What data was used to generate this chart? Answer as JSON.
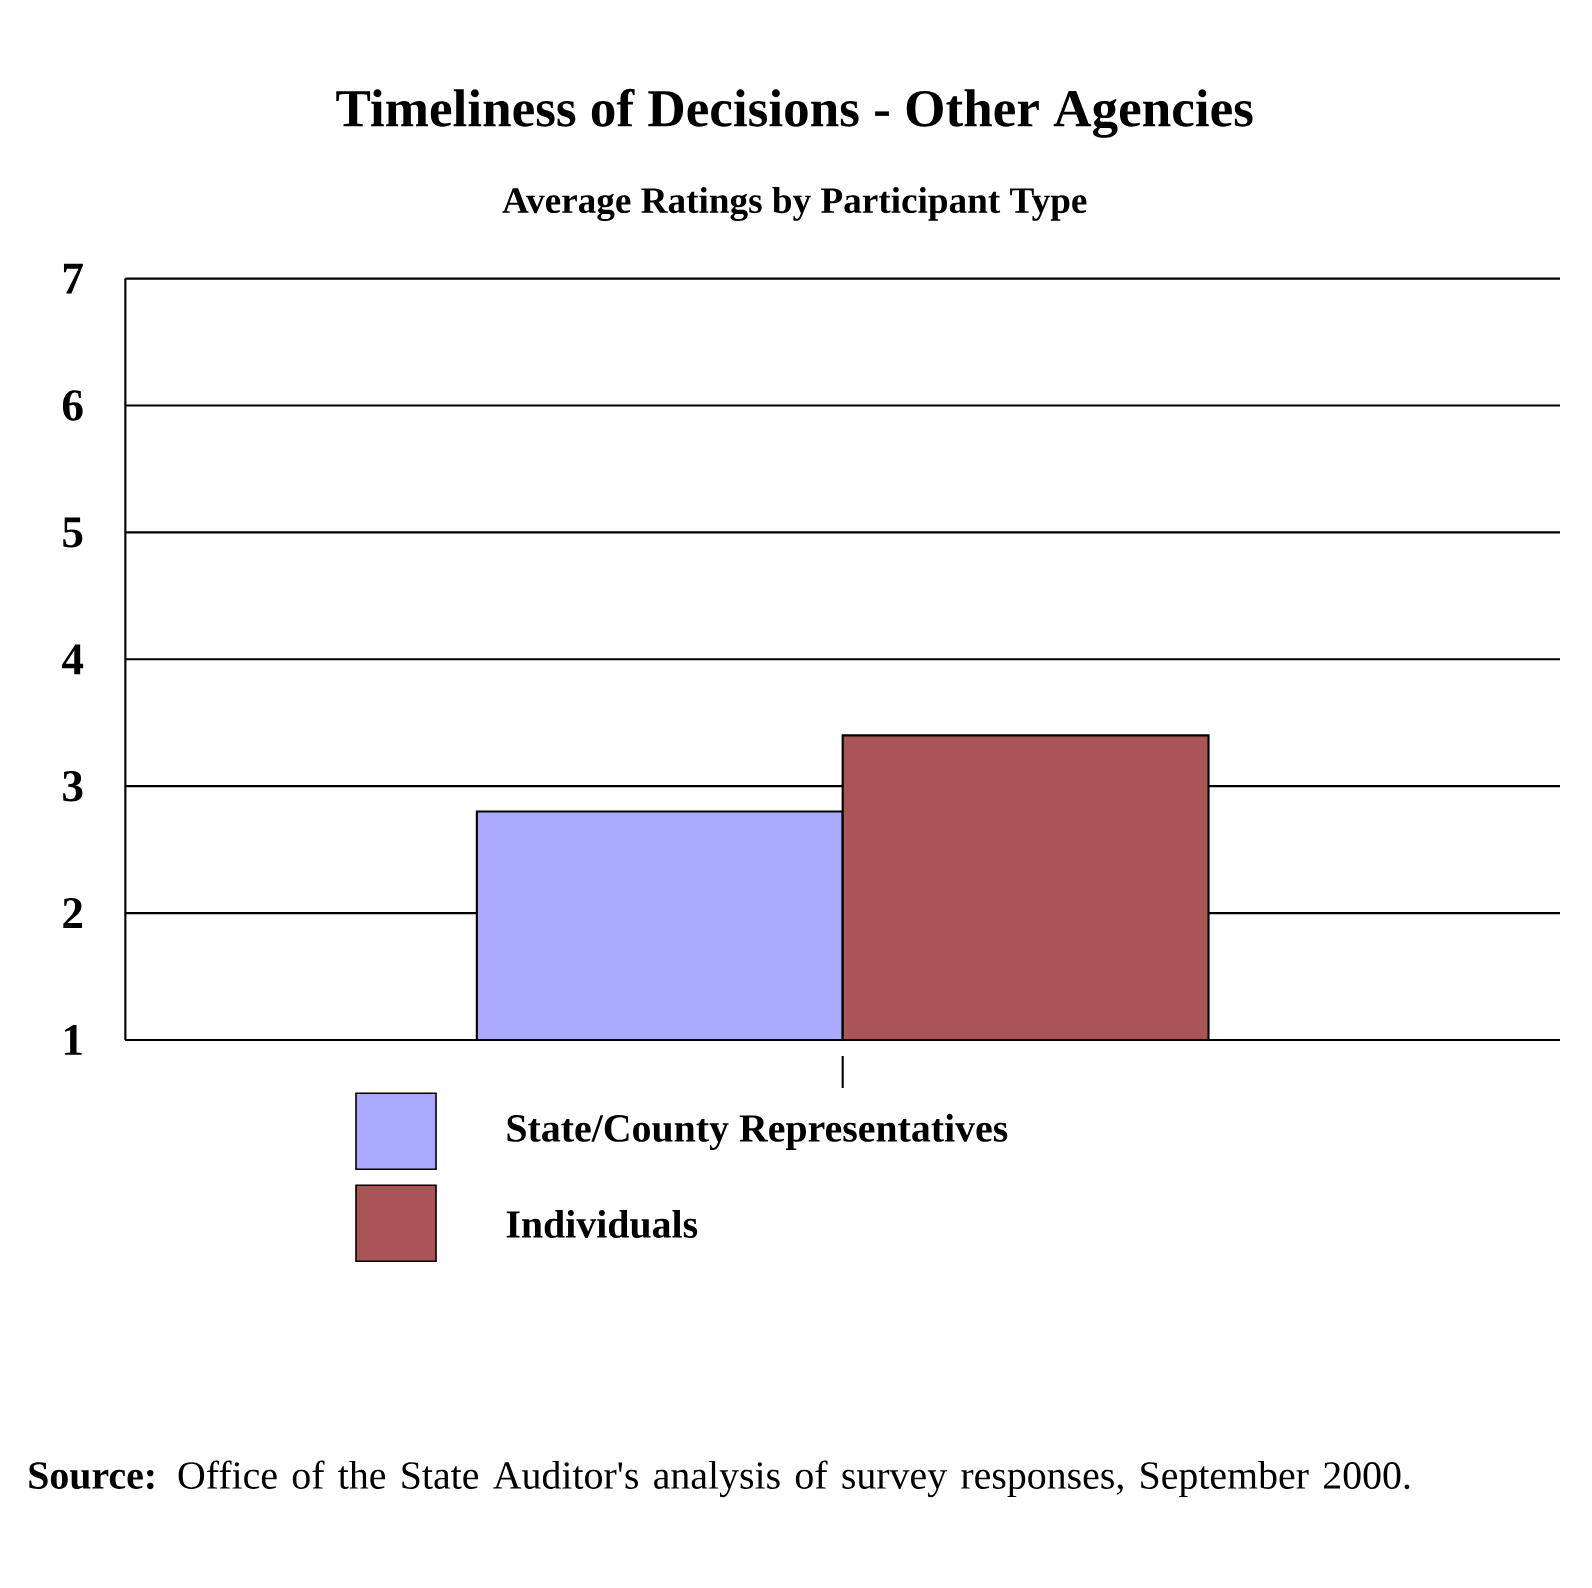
{
  "chart_data": {
    "type": "bar",
    "title": "Timeliness of Decisions - Other Agencies",
    "subtitle": "Average Ratings by Participant Type",
    "categories": [
      null
    ],
    "series": [
      {
        "name": "State/County Representatives",
        "color": "#aaaaff",
        "values": [
          2.8
        ]
      },
      {
        "name": "Individuals",
        "color": "#aa5555",
        "values": [
          3.4
        ]
      }
    ],
    "ylim": [
      1,
      7
    ],
    "yticks": [
      1,
      2,
      3,
      4,
      5,
      6,
      7
    ],
    "grid": "y",
    "legend": "bottom",
    "annotations": [
      "**Source:** Office of the State Auditor's analysis of survey responses, September 2000."
    ]
  }
}
